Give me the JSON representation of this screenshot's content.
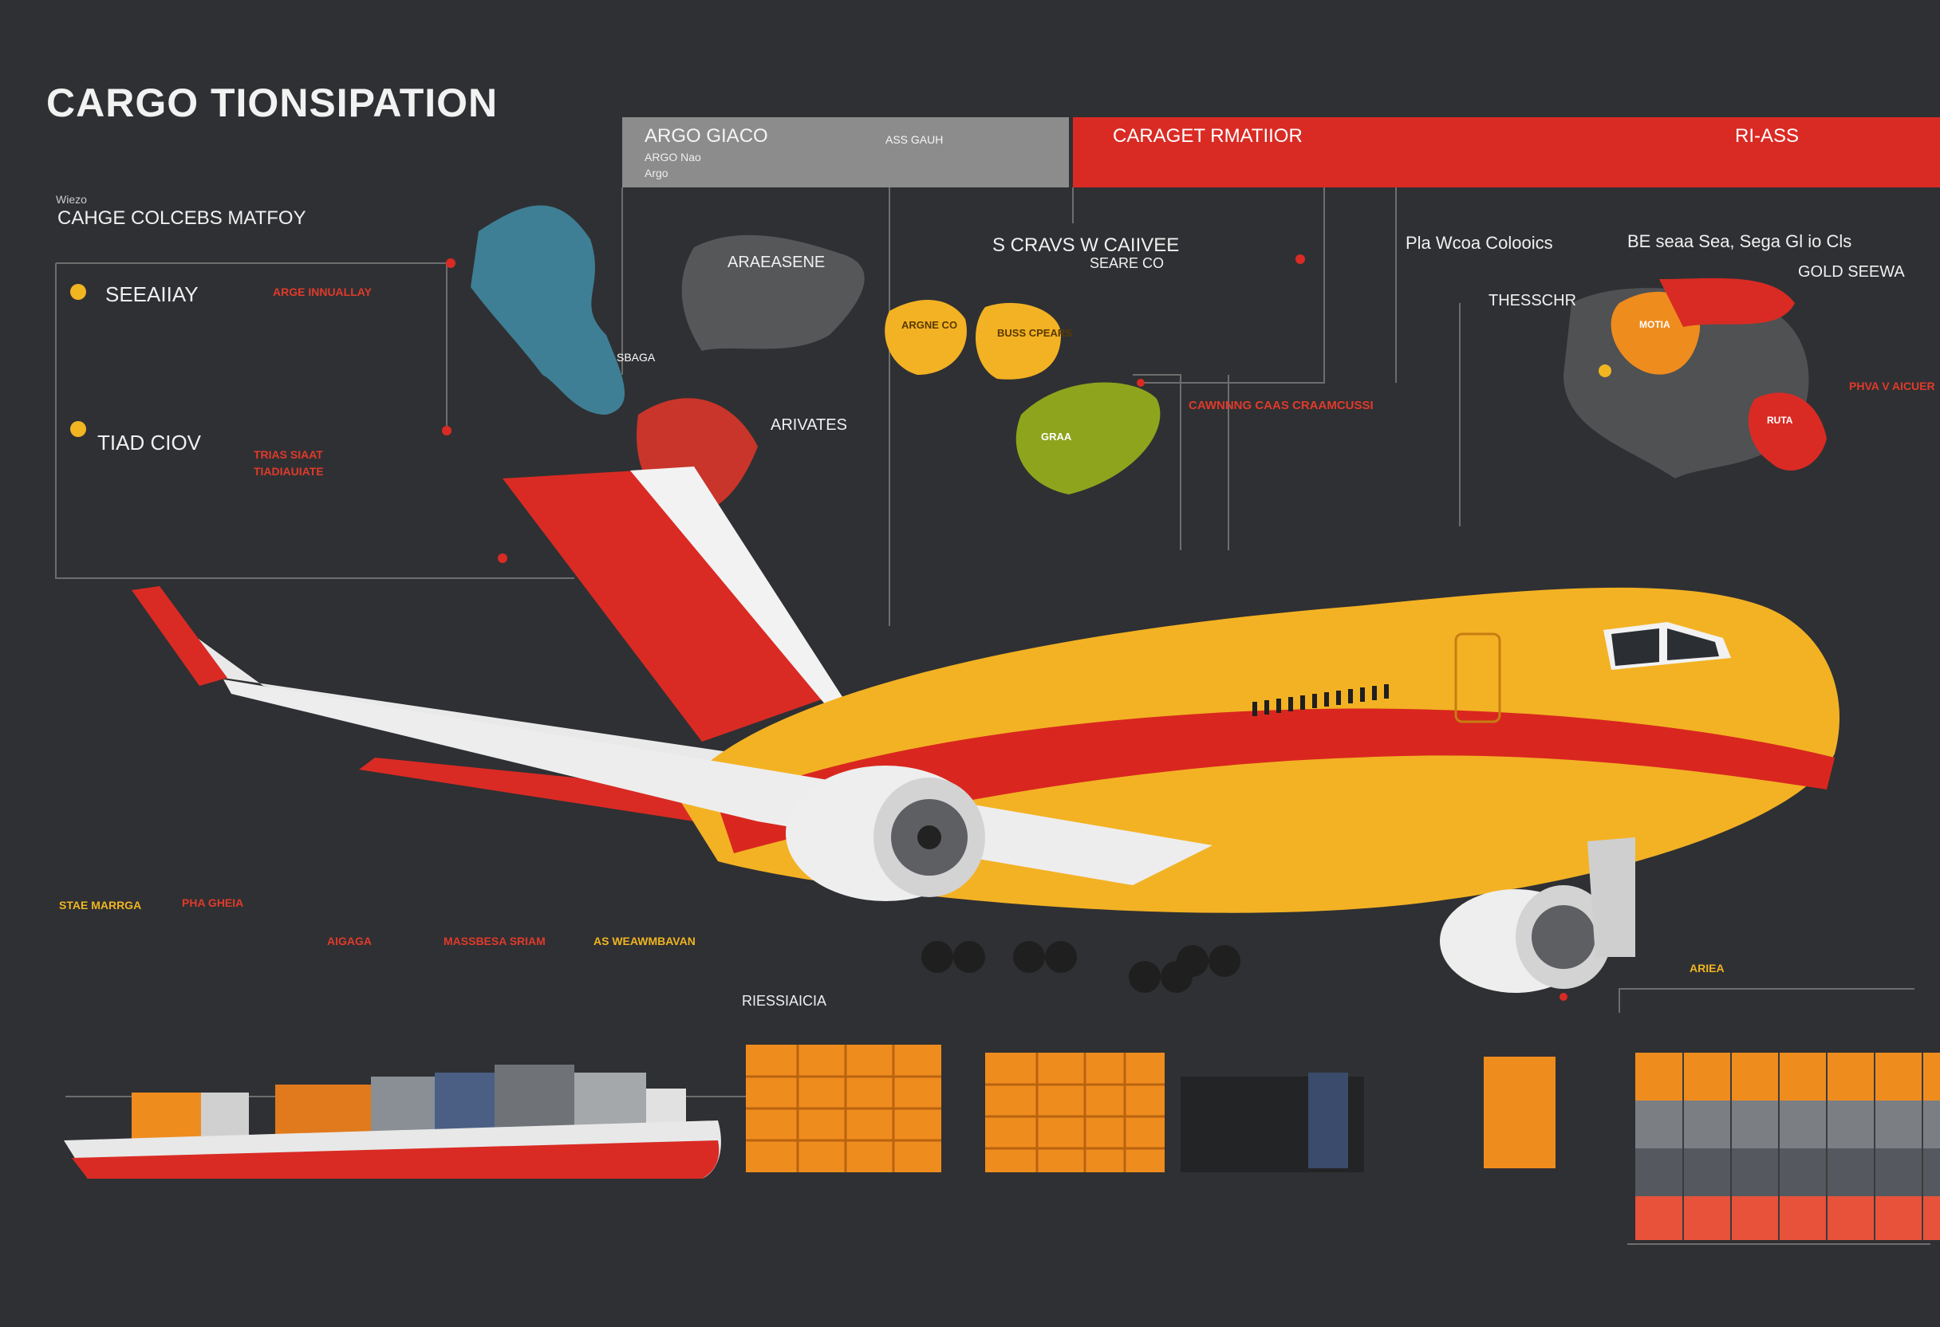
{
  "header": {
    "title": "CARGO TIONSIPATION",
    "grey_panel": {
      "title": "ARGO GIACO",
      "sub1": "ARGO Nao",
      "sub2": "Argo",
      "right_title": "ASS GAUH"
    },
    "red_panel": {
      "title": "CARAGET RMATIIOR",
      "right_title": "RI-ASS"
    }
  },
  "left_section": {
    "kicker": "Wiezo",
    "heading": "CAHGE COLCEBS MATFOY",
    "sea_label": "SEEAIIAY",
    "sea_red": "ARGE INNUALLAY",
    "trad_label": "TIAD CIOV",
    "trad_red": "TRIAS SIAAT TIADIAUIATE"
  },
  "map_section": {
    "area_label": "ARAEASENE",
    "arrow_label": "ARIVATES",
    "scravs": "S CRAVS W CAIIVEE",
    "seare": "SEARE CO",
    "sbaga": "SBAGA"
  },
  "right_section": {
    "pla_label": "Pla Wcoa Colooics",
    "be_label": "BE seaa Sea, Sega Gl io Cls",
    "gold_label": "GOLD SEEWA",
    "the_label": "THESSCHR",
    "bottom_red": "PHVA V AICUER",
    "ariea": "ARIEA",
    "riedia": "RIESSIAICIA"
  },
  "mid_section": {
    "red_heading": "CAWNNNG CAAS CRAAMCUSSI"
  },
  "blobs": {
    "yellow1": "ARGNE CO",
    "yellow2": "BUSS CPEARS",
    "green": "GRAA",
    "orange_r": "MOTIA",
    "red_r": "RUTA"
  },
  "low_section": {
    "l1": "STAE MARRGA",
    "l2": "PHA GHEIA",
    "l3": "AIGAGA",
    "l4": "MASSBESA SRIAM",
    "l5": "AS WEAWMBAVAN"
  },
  "colors": {
    "bg": "#2f3033",
    "red": "#d92b24",
    "yellow": "#f3b224",
    "orange": "#ef8c1e",
    "teal": "#3e7f95",
    "olive": "#8ea41d"
  }
}
